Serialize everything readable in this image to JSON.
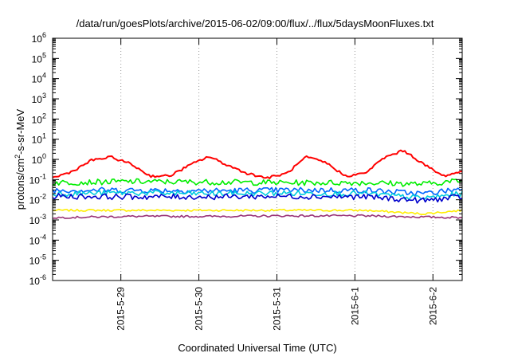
{
  "chart_data": {
    "type": "line",
    "title": "/data/run/goesPlots/archive/2015-06-02/09:00/flux/../flux/5daysMoonFluxes.txt",
    "xlabel": "Coordinated Universal Time (UTC)",
    "ylabel": "protons/cm2-s-sr-MeV",
    "ylabel_parts": {
      "before": "protons/cm",
      "sup": "2",
      "after": "-s-sr-MeV"
    },
    "y_scale": "log",
    "ylim": [
      1e-06,
      1000000.0
    ],
    "y_ticks": [
      {
        "base": "10",
        "exp": "6"
      },
      {
        "base": "10",
        "exp": "5"
      },
      {
        "base": "10",
        "exp": "4"
      },
      {
        "base": "10",
        "exp": "3"
      },
      {
        "base": "10",
        "exp": "2"
      },
      {
        "base": "10",
        "exp": "1"
      },
      {
        "base": "10",
        "exp": "0"
      },
      {
        "base": "10",
        "exp": "-1"
      },
      {
        "base": "10",
        "exp": "-2"
      },
      {
        "base": "10",
        "exp": "-3"
      },
      {
        "base": "10",
        "exp": "-4"
      },
      {
        "base": "10",
        "exp": "-5"
      },
      {
        "base": "10",
        "exp": "-6"
      }
    ],
    "xlim": [
      "2015-05-28T03:00",
      "2015-06-02T09:00"
    ],
    "x_ticks": [
      "2015-5-29",
      "2015-5-30",
      "2015-5-31",
      "2015-6-1",
      "2015-6-2"
    ],
    "grid": "vertical dotted",
    "series": [
      {
        "color": "#ff0000",
        "x": [
          "2015-05-28T03:00",
          "2015-05-28T09:00",
          "2015-05-28T15:00",
          "2015-05-28T21:00",
          "2015-05-29T03:00",
          "2015-05-29T09:00",
          "2015-05-29T15:00",
          "2015-05-29T21:00",
          "2015-05-30T03:00",
          "2015-05-30T09:00",
          "2015-05-30T15:00",
          "2015-05-30T21:00",
          "2015-05-31T03:00",
          "2015-05-31T09:00",
          "2015-05-31T15:00",
          "2015-05-31T21:00",
          "2015-06-01T03:00",
          "2015-06-01T09:00",
          "2015-06-01T15:00",
          "2015-06-01T21:00",
          "2015-06-02T03:00",
          "2015-06-02T09:00"
        ],
        "y": [
          0.12,
          0.25,
          0.9,
          1.3,
          0.6,
          0.15,
          0.15,
          0.5,
          1.4,
          0.5,
          0.2,
          0.12,
          0.2,
          1.3,
          0.7,
          0.15,
          0.2,
          1.2,
          2.8,
          0.6,
          0.15,
          0.25
        ]
      },
      {
        "color": "#00ee00",
        "x": [
          "2015-05-28T03:00",
          "2015-05-29T03:00",
          "2015-05-30T03:00",
          "2015-05-31T03:00",
          "2015-06-01T03:00",
          "2015-06-01T21:00",
          "2015-06-02T09:00"
        ],
        "y": [
          0.07,
          0.08,
          0.075,
          0.07,
          0.07,
          0.06,
          0.09
        ]
      },
      {
        "color": "#00ccdd",
        "x": [
          "2015-05-28T03:00",
          "2015-05-29T03:00",
          "2015-05-30T03:00",
          "2015-05-31T03:00",
          "2015-06-01T03:00",
          "2015-06-01T21:00",
          "2015-06-02T09:00"
        ],
        "y": [
          0.02,
          0.022,
          0.02,
          0.021,
          0.02,
          0.012,
          0.02
        ]
      },
      {
        "color": "#0066ff",
        "x": [
          "2015-05-28T03:00",
          "2015-05-29T03:00",
          "2015-05-30T03:00",
          "2015-05-31T03:00",
          "2015-06-01T03:00",
          "2015-06-01T21:00",
          "2015-06-02T09:00"
        ],
        "y": [
          0.03,
          0.03,
          0.028,
          0.03,
          0.03,
          0.02,
          0.035
        ]
      },
      {
        "color": "#0000cc",
        "x": [
          "2015-05-28T03:00",
          "2015-05-29T03:00",
          "2015-05-30T03:00",
          "2015-05-31T03:00",
          "2015-06-01T03:00",
          "2015-06-01T21:00",
          "2015-06-02T09:00"
        ],
        "y": [
          0.015,
          0.014,
          0.014,
          0.015,
          0.014,
          0.009,
          0.014
        ]
      },
      {
        "color": "#ffee00",
        "x": [
          "2015-05-28T03:00",
          "2015-05-29T03:00",
          "2015-05-30T03:00",
          "2015-05-31T03:00",
          "2015-06-01T03:00",
          "2015-06-01T21:00",
          "2015-06-02T09:00"
        ],
        "y": [
          0.003,
          0.003,
          0.003,
          0.003,
          0.003,
          0.002,
          0.003
        ]
      },
      {
        "color": "#993377",
        "x": [
          "2015-05-28T03:00",
          "2015-05-29T03:00",
          "2015-05-30T03:00",
          "2015-05-31T03:00",
          "2015-06-01T03:00",
          "2015-06-01T21:00",
          "2015-06-02T09:00"
        ],
        "y": [
          0.0013,
          0.0015,
          0.0015,
          0.0016,
          0.0016,
          0.0014,
          0.0013
        ]
      }
    ]
  }
}
